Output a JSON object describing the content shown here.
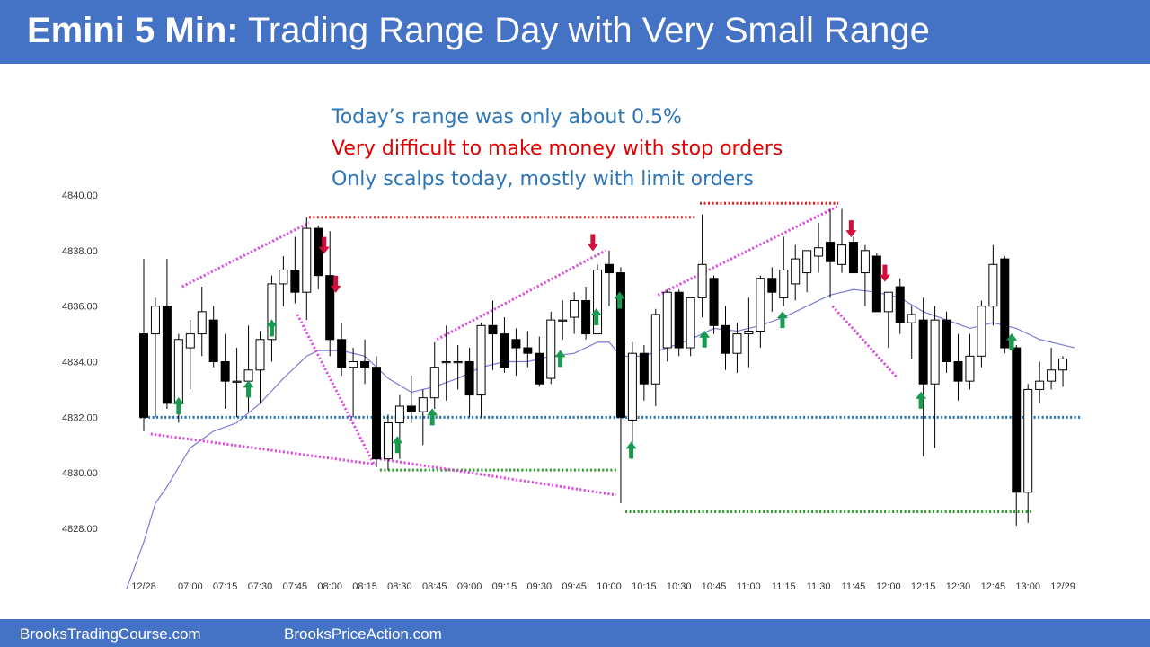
{
  "header": {
    "title_bold": "Emini 5 Min:",
    "title_rest": "Trading Range Day with Very Small Range"
  },
  "annotations": [
    {
      "text": "Today’s range was only about 0.5%",
      "color": "#2e75b6"
    },
    {
      "text": "Very difficult to make money with stop orders",
      "color": "#e00000"
    },
    {
      "text": "Only scalps today, mostly with limit orders",
      "color": "#2e75b6"
    }
  ],
  "footer": {
    "left": "BrooksTradingCourse.com",
    "right": "BrooksPriceAction.com"
  },
  "colors": {
    "header_bg": "#4472c4",
    "bull": "#ffffff",
    "bear": "#000000",
    "ema": "#7b7bd6",
    "magenta": "#e040e0",
    "red_line": "#e02020",
    "green_line": "#2a9a2a",
    "blue_line": "#1f6fb0",
    "buy_arrow": "#1a9a50",
    "sell_arrow": "#d0103a"
  },
  "chart_data": {
    "type": "candlestick",
    "ylim": [
      4827,
      4840.5
    ],
    "yticks": [
      4828,
      4830,
      4832,
      4834,
      4836,
      4838,
      4840
    ],
    "ytick_labels": [
      "4828.00",
      "4830.00",
      "4832.00",
      "4834.00",
      "4836.00",
      "4838.00",
      "4840.00"
    ],
    "x_labels": [
      {
        "i": 0,
        "label": "12/28"
      },
      {
        "i": 4,
        "label": "07:00"
      },
      {
        "i": 7,
        "label": "07:15"
      },
      {
        "i": 10,
        "label": "07:30"
      },
      {
        "i": 13,
        "label": "07:45"
      },
      {
        "i": 16,
        "label": "08:00"
      },
      {
        "i": 19,
        "label": "08:15"
      },
      {
        "i": 22,
        "label": "08:30"
      },
      {
        "i": 25,
        "label": "08:45"
      },
      {
        "i": 28,
        "label": "09:00"
      },
      {
        "i": 31,
        "label": "09:15"
      },
      {
        "i": 34,
        "label": "09:30"
      },
      {
        "i": 37,
        "label": "09:45"
      },
      {
        "i": 40,
        "label": "10:00"
      },
      {
        "i": 43,
        "label": "10:15"
      },
      {
        "i": 46,
        "label": "10:30"
      },
      {
        "i": 49,
        "label": "10:45"
      },
      {
        "i": 52,
        "label": "11:00"
      },
      {
        "i": 55,
        "label": "11:15"
      },
      {
        "i": 58,
        "label": "11:30"
      },
      {
        "i": 61,
        "label": "11:45"
      },
      {
        "i": 64,
        "label": "12:00"
      },
      {
        "i": 67,
        "label": "12:15"
      },
      {
        "i": 70,
        "label": "12:30"
      },
      {
        "i": 73,
        "label": "12:45"
      },
      {
        "i": 76,
        "label": "13:00"
      },
      {
        "i": 79,
        "label": "12/29"
      }
    ],
    "candles": [
      [
        4835,
        4837.7,
        4831.5,
        4832
      ],
      [
        4835,
        4836.3,
        4832,
        4836
      ],
      [
        4836,
        4837.7,
        4832.3,
        4832.5
      ],
      [
        4832.5,
        4835,
        4831.8,
        4834.8
      ],
      [
        4834.5,
        4835.5,
        4833,
        4835
      ],
      [
        4835,
        4836.7,
        4834.2,
        4835.8
      ],
      [
        4835.5,
        4836,
        4833.8,
        4834
      ],
      [
        4834,
        4835,
        4832.3,
        4833.3
      ],
      [
        4833.3,
        4834.5,
        4832,
        4833.3
      ],
      [
        4833.3,
        4835.3,
        4832.2,
        4833.7
      ],
      [
        4833.7,
        4835.1,
        4832.5,
        4834.8
      ],
      [
        4834.8,
        4837.1,
        4834,
        4836.8
      ],
      [
        4836.8,
        4837.8,
        4836,
        4837.3
      ],
      [
        4837.3,
        4838.5,
        4836.1,
        4836.5
      ],
      [
        4836.5,
        4839.2,
        4835.5,
        4838.8
      ],
      [
        4838.8,
        4838.9,
        4836.6,
        4837.1
      ],
      [
        4837.1,
        4838.7,
        4834.2,
        4834.8
      ],
      [
        4834.8,
        4835.4,
        4833.5,
        4833.8
      ],
      [
        4833.8,
        4834.5,
        4832,
        4834
      ],
      [
        4834,
        4834.8,
        4833.2,
        4833.8
      ],
      [
        4833.8,
        4834.2,
        4830.2,
        4830.5
      ],
      [
        4830.5,
        4832.1,
        4830.1,
        4831.8
      ],
      [
        4831.8,
        4832.8,
        4830.5,
        4832.4
      ],
      [
        4832.4,
        4833.5,
        4831.8,
        4832.2
      ],
      [
        4832.2,
        4833,
        4831,
        4832.7
      ],
      [
        4832.7,
        4834.7,
        4832.3,
        4833.8
      ],
      [
        4834,
        4835.3,
        4832.6,
        4834
      ],
      [
        4834,
        4834.6,
        4833,
        4834
      ],
      [
        4834,
        4834.5,
        4832,
        4832.8
      ],
      [
        4832.8,
        4835.4,
        4832,
        4835.3
      ],
      [
        4835.3,
        4836.2,
        4833.7,
        4835
      ],
      [
        4835,
        4835.6,
        4833.6,
        4833.8
      ],
      [
        4834.8,
        4835.2,
        4833.5,
        4834.5
      ],
      [
        4834.5,
        4835.1,
        4833.8,
        4834.3
      ],
      [
        4834.3,
        4834.9,
        4833.1,
        4833.2
      ],
      [
        4833.4,
        4835.8,
        4833.2,
        4835.5
      ],
      [
        4835.5,
        4836.2,
        4834.8,
        4835.5
      ],
      [
        4835.6,
        4836.5,
        4835,
        4836.2
      ],
      [
        4836.2,
        4836.7,
        4834.8,
        4835
      ],
      [
        4835,
        4837.5,
        4835,
        4837.3
      ],
      [
        4837.5,
        4838,
        4836,
        4837.2
      ],
      [
        4837.2,
        4837.4,
        4828.9,
        4832
      ],
      [
        4831.9,
        4834.7,
        4831,
        4834.3
      ],
      [
        4834.3,
        4834.6,
        4832.6,
        4833.2
      ],
      [
        4833.2,
        4835.9,
        4832.4,
        4835.7
      ],
      [
        4834.5,
        4836.6,
        4834,
        4836.5
      ],
      [
        4836.5,
        4836.6,
        4834.2,
        4834.5
      ],
      [
        4834.5,
        4836.3,
        4834.2,
        4836.3
      ],
      [
        4836.3,
        4839.3,
        4835.6,
        4837.5
      ],
      [
        4837,
        4837.1,
        4835,
        4835.3
      ],
      [
        4835.3,
        4836,
        4833.7,
        4834.3
      ],
      [
        4834.3,
        4835.4,
        4833.6,
        4835
      ],
      [
        4835,
        4836.3,
        4833.8,
        4835.1
      ],
      [
        4835.1,
        4837.1,
        4834.5,
        4837
      ],
      [
        4837,
        4837.4,
        4835.8,
        4836.5
      ],
      [
        4836.3,
        4838.5,
        4836,
        4837.3
      ],
      [
        4836.8,
        4838.2,
        4836.2,
        4837.7
      ],
      [
        4837.2,
        4838,
        4836.5,
        4838
      ],
      [
        4837.8,
        4839,
        4837.2,
        4838.1
      ],
      [
        4838.3,
        4839.5,
        4836.3,
        4837.6
      ],
      [
        4837.5,
        4839.5,
        4837.2,
        4838.2
      ],
      [
        4838.3,
        4838.5,
        4837.2,
        4837.2
      ],
      [
        4837.2,
        4838.2,
        4836,
        4838
      ],
      [
        4837.8,
        4837.9,
        4835.8,
        4835.8
      ],
      [
        4835.8,
        4836.5,
        4834.5,
        4836.5
      ],
      [
        4836.7,
        4837,
        4835,
        4835.4
      ],
      [
        4835.4,
        4836,
        4834.1,
        4835.7
      ],
      [
        4835.5,
        4836.3,
        4830.6,
        4833.2
      ],
      [
        4833.2,
        4836,
        4830.9,
        4835.5
      ],
      [
        4835.5,
        4835.8,
        4833.6,
        4834
      ],
      [
        4834,
        4835,
        4832.6,
        4833.3
      ],
      [
        4833.3,
        4835,
        4833,
        4834.2
      ],
      [
        4834.2,
        4836.2,
        4833.8,
        4836
      ],
      [
        4836,
        4838.2,
        4835.3,
        4837.5
      ],
      [
        4837.7,
        4837.8,
        4834.3,
        4834.5
      ],
      [
        4834.5,
        4834.6,
        4828.1,
        4829.3
      ],
      [
        4829.3,
        4833.2,
        4828.2,
        4833
      ],
      [
        4833,
        4834,
        4832.5,
        4833.3
      ],
      [
        4833.3,
        4834.5,
        4833,
        4833.7
      ],
      [
        4833.7,
        4834.2,
        4833.1,
        4834.1
      ]
    ],
    "ema": [
      [
        -1.5,
        4825.8
      ],
      [
        0,
        4827.5
      ],
      [
        1,
        4828.9
      ],
      [
        2,
        4829.5
      ],
      [
        4,
        4830.9
      ],
      [
        6,
        4831.5
      ],
      [
        8,
        4831.8
      ],
      [
        10,
        4832.5
      ],
      [
        12,
        4833.4
      ],
      [
        14,
        4834.2
      ],
      [
        15,
        4834.4
      ],
      [
        17,
        4834.4
      ],
      [
        19,
        4834.2
      ],
      [
        21,
        4833.4
      ],
      [
        23,
        4832.9
      ],
      [
        25,
        4833.1
      ],
      [
        27,
        4833.4
      ],
      [
        29,
        4833.8
      ],
      [
        31,
        4834
      ],
      [
        33,
        4834
      ],
      [
        35,
        4834.2
      ],
      [
        37,
        4834.3
      ],
      [
        39,
        4834.7
      ],
      [
        40,
        4834.7
      ],
      [
        41,
        4834.2
      ],
      [
        43,
        4834.2
      ],
      [
        45,
        4834.5
      ],
      [
        47,
        4834.8
      ],
      [
        49,
        4835.2
      ],
      [
        51,
        4835.1
      ],
      [
        53,
        4835.3
      ],
      [
        55,
        4835.6
      ],
      [
        57,
        4836
      ],
      [
        59,
        4836.4
      ],
      [
        61,
        4836.6
      ],
      [
        63,
        4836.5
      ],
      [
        65,
        4836.3
      ],
      [
        67,
        4835.8
      ],
      [
        69,
        4835.5
      ],
      [
        71,
        4835.2
      ],
      [
        73,
        4835.4
      ],
      [
        75,
        4835.2
      ],
      [
        77,
        4834.8
      ],
      [
        79,
        4834.6
      ],
      [
        80,
        4834.5
      ]
    ],
    "lines": {
      "magenta": [
        [
          [
            0.6,
            4831.4
          ],
          [
            20,
            4830.3
          ]
        ],
        [
          [
            20.3,
            4830.5
          ],
          [
            40.6,
            4829.2
          ]
        ],
        [
          [
            3.3,
            4836.7
          ],
          [
            14.2,
            4839
          ]
        ],
        [
          [
            13.2,
            4835.7
          ],
          [
            19.8,
            4830.3
          ]
        ],
        [
          [
            25.2,
            4834.8
          ],
          [
            39.7,
            4838
          ]
        ],
        [
          [
            44.2,
            4836.4
          ],
          [
            59.7,
            4839.6
          ]
        ],
        [
          [
            59.2,
            4836
          ],
          [
            64.8,
            4833.4
          ]
        ]
      ],
      "red": [
        [
          [
            14.2,
            4839.2
          ],
          [
            47.5,
            4839.2
          ]
        ],
        [
          [
            47.8,
            4839.7
          ],
          [
            59.7,
            4839.7
          ]
        ]
      ],
      "green": [
        [
          [
            20.3,
            4830.1
          ],
          [
            40.6,
            4830.1
          ]
        ],
        [
          [
            41.4,
            4828.6
          ],
          [
            76.4,
            4828.6
          ]
        ]
      ],
      "blue": [
        [
          [
            -0.3,
            4832
          ],
          [
            80.6,
            4832
          ]
        ]
      ]
    },
    "buy_arrows": [
      [
        3,
        4832.4
      ],
      [
        9,
        4833
      ],
      [
        11,
        4835.2
      ],
      [
        21.8,
        4831
      ],
      [
        24.8,
        4832
      ],
      [
        35.8,
        4834.1
      ],
      [
        38.9,
        4835.6
      ],
      [
        40.9,
        4836.2
      ],
      [
        41.9,
        4830.8
      ],
      [
        48.2,
        4834.8
      ],
      [
        54.9,
        4835.5
      ],
      [
        66.8,
        4832.6
      ],
      [
        74.6,
        4834.7
      ]
    ],
    "sell_arrows": [
      [
        15.5,
        4838.2
      ],
      [
        16.5,
        4836.8
      ],
      [
        38.6,
        4838.3
      ],
      [
        60.8,
        4838.8
      ],
      [
        63.7,
        4837.2
      ]
    ]
  }
}
